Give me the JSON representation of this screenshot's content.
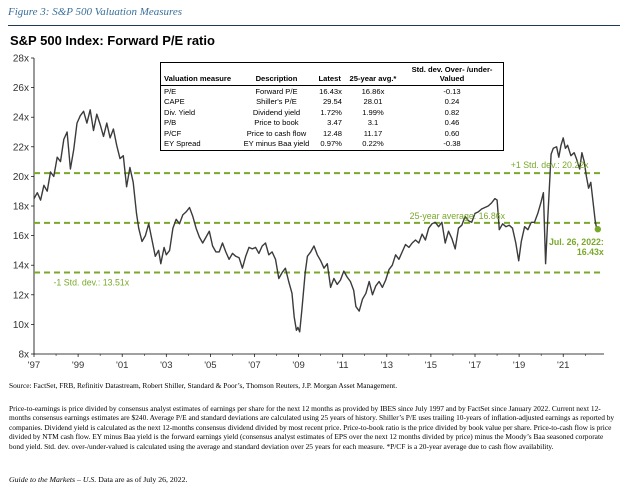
{
  "figure_title": "Figure 3: S&P 500 Valuation Measures",
  "chart_title": "S&P 500 Index: Forward P/E ratio",
  "table": {
    "headers": [
      "Valuation measure",
      "Description",
      "Latest",
      "25-year avg.*",
      "Std. dev. Over- /under-Valued"
    ],
    "rows": [
      [
        "P/E",
        "Forward P/E",
        "16.43x",
        "16.86x",
        "-0.13"
      ],
      [
        "CAPE",
        "Shiller's P/E",
        "29.54",
        "28.01",
        "0.24"
      ],
      [
        "Div. Yield",
        "Dividend yield",
        "1.72%",
        "1.99%",
        "0.82"
      ],
      [
        "P/B",
        "Price to book",
        "3.47",
        "3.1",
        "0.46"
      ],
      [
        "P/CF",
        "Price to cash flow",
        "12.48",
        "11.17",
        "0.60"
      ],
      [
        "EY Spread",
        "EY minus Baa yield",
        "0.97%",
        "0.22%",
        "-0.38"
      ]
    ]
  },
  "chart_data": {
    "type": "line",
    "title": "S&P 500 Index: Forward P/E ratio",
    "xlabel": "",
    "ylabel": "",
    "ylim": [
      8,
      28
    ],
    "y_ticks": [
      "8x",
      "10x",
      "12x",
      "14x",
      "16x",
      "18x",
      "20x",
      "22x",
      "24x",
      "26x",
      "28x"
    ],
    "x_ticks": [
      "'97",
      "'99",
      "'01",
      "'03",
      "'05",
      "'07",
      "'09",
      "'11",
      "'13",
      "'15",
      "'17",
      "'19",
      "'21"
    ],
    "series": [
      {
        "color": "#3b3b3b",
        "points": [
          [
            1997.0,
            18.5
          ],
          [
            1997.15,
            18.9
          ],
          [
            1997.3,
            18.4
          ],
          [
            1997.45,
            19.4
          ],
          [
            1997.6,
            19.0
          ],
          [
            1997.75,
            20.3
          ],
          [
            1997.9,
            20.0
          ],
          [
            1998.05,
            21.3
          ],
          [
            1998.2,
            21.0
          ],
          [
            1998.35,
            22.5
          ],
          [
            1998.5,
            23.0
          ],
          [
            1998.65,
            20.5
          ],
          [
            1998.8,
            21.8
          ],
          [
            1998.95,
            23.6
          ],
          [
            1999.1,
            24.1
          ],
          [
            1999.25,
            24.4
          ],
          [
            1999.4,
            23.6
          ],
          [
            1999.55,
            24.5
          ],
          [
            1999.7,
            23.1
          ],
          [
            1999.85,
            24.2
          ],
          [
            2000.0,
            23.5
          ],
          [
            2000.15,
            22.7
          ],
          [
            2000.3,
            23.6
          ],
          [
            2000.45,
            22.6
          ],
          [
            2000.6,
            23.2
          ],
          [
            2000.75,
            22.1
          ],
          [
            2000.9,
            21.2
          ],
          [
            2001.05,
            21.4
          ],
          [
            2001.2,
            19.3
          ],
          [
            2001.35,
            20.6
          ],
          [
            2001.5,
            19.6
          ],
          [
            2001.65,
            17.5
          ],
          [
            2001.75,
            16.5
          ],
          [
            2001.9,
            15.6
          ],
          [
            2002.05,
            16.0
          ],
          [
            2002.2,
            16.8
          ],
          [
            2002.35,
            15.7
          ],
          [
            2002.5,
            14.6
          ],
          [
            2002.65,
            15.0
          ],
          [
            2002.75,
            14.1
          ],
          [
            2002.9,
            15.2
          ],
          [
            2003.0,
            14.7
          ],
          [
            2003.15,
            15.0
          ],
          [
            2003.3,
            16.5
          ],
          [
            2003.45,
            17.1
          ],
          [
            2003.6,
            16.8
          ],
          [
            2003.75,
            17.4
          ],
          [
            2003.9,
            17.6
          ],
          [
            2004.05,
            17.9
          ],
          [
            2004.2,
            17.3
          ],
          [
            2004.35,
            16.5
          ],
          [
            2004.5,
            15.9
          ],
          [
            2004.65,
            15.5
          ],
          [
            2004.8,
            15.9
          ],
          [
            2004.95,
            16.3
          ],
          [
            2005.1,
            15.3
          ],
          [
            2005.25,
            14.9
          ],
          [
            2005.4,
            14.9
          ],
          [
            2005.55,
            15.5
          ],
          [
            2005.7,
            14.9
          ],
          [
            2005.85,
            14.4
          ],
          [
            2006.0,
            14.8
          ],
          [
            2006.15,
            14.6
          ],
          [
            2006.3,
            14.5
          ],
          [
            2006.45,
            13.8
          ],
          [
            2006.6,
            14.6
          ],
          [
            2006.75,
            15.2
          ],
          [
            2006.9,
            15.1
          ],
          [
            2007.05,
            15.2
          ],
          [
            2007.2,
            14.8
          ],
          [
            2007.35,
            15.3
          ],
          [
            2007.5,
            15.5
          ],
          [
            2007.65,
            14.7
          ],
          [
            2007.8,
            14.9
          ],
          [
            2007.95,
            14.4
          ],
          [
            2008.1,
            13.1
          ],
          [
            2008.25,
            13.5
          ],
          [
            2008.4,
            13.8
          ],
          [
            2008.55,
            12.9
          ],
          [
            2008.7,
            12.1
          ],
          [
            2008.8,
            10.5
          ],
          [
            2008.9,
            9.6
          ],
          [
            2008.97,
            9.8
          ],
          [
            2009.05,
            9.5
          ],
          [
            2009.15,
            11.0
          ],
          [
            2009.3,
            13.5
          ],
          [
            2009.4,
            14.6
          ],
          [
            2009.55,
            14.9
          ],
          [
            2009.7,
            15.3
          ],
          [
            2009.85,
            14.7
          ],
          [
            2010.0,
            14.3
          ],
          [
            2010.15,
            13.8
          ],
          [
            2010.3,
            14.1
          ],
          [
            2010.45,
            12.5
          ],
          [
            2010.6,
            13.1
          ],
          [
            2010.75,
            12.7
          ],
          [
            2010.9,
            13.0
          ],
          [
            2011.05,
            13.6
          ],
          [
            2011.2,
            13.2
          ],
          [
            2011.35,
            12.9
          ],
          [
            2011.5,
            12.3
          ],
          [
            2011.6,
            11.2
          ],
          [
            2011.75,
            10.9
          ],
          [
            2011.9,
            11.7
          ],
          [
            2012.05,
            12.1
          ],
          [
            2012.2,
            12.9
          ],
          [
            2012.35,
            12.0
          ],
          [
            2012.5,
            12.6
          ],
          [
            2012.65,
            12.9
          ],
          [
            2012.8,
            12.5
          ],
          [
            2012.95,
            13.0
          ],
          [
            2013.1,
            13.7
          ],
          [
            2013.25,
            14.0
          ],
          [
            2013.4,
            14.7
          ],
          [
            2013.55,
            14.4
          ],
          [
            2013.7,
            14.9
          ],
          [
            2013.85,
            15.4
          ],
          [
            2014.0,
            15.2
          ],
          [
            2014.15,
            15.5
          ],
          [
            2014.3,
            15.7
          ],
          [
            2014.45,
            15.5
          ],
          [
            2014.6,
            16.1
          ],
          [
            2014.75,
            15.7
          ],
          [
            2014.9,
            16.5
          ],
          [
            2015.05,
            16.8
          ],
          [
            2015.2,
            16.9
          ],
          [
            2015.35,
            16.6
          ],
          [
            2015.5,
            16.9
          ],
          [
            2015.65,
            15.5
          ],
          [
            2015.8,
            16.3
          ],
          [
            2015.95,
            15.8
          ],
          [
            2016.1,
            15.1
          ],
          [
            2016.25,
            16.5
          ],
          [
            2016.4,
            16.7
          ],
          [
            2016.55,
            17.3
          ],
          [
            2016.7,
            17.0
          ],
          [
            2016.85,
            16.9
          ],
          [
            2017.0,
            17.5
          ],
          [
            2017.15,
            17.6
          ],
          [
            2017.3,
            17.8
          ],
          [
            2017.45,
            17.9
          ],
          [
            2017.6,
            18.0
          ],
          [
            2017.75,
            18.2
          ],
          [
            2017.9,
            18.5
          ],
          [
            2018.0,
            18.4
          ],
          [
            2018.1,
            16.4
          ],
          [
            2018.25,
            16.8
          ],
          [
            2018.4,
            16.6
          ],
          [
            2018.55,
            16.7
          ],
          [
            2018.7,
            16.5
          ],
          [
            2018.85,
            15.5
          ],
          [
            2018.98,
            14.3
          ],
          [
            2019.1,
            15.6
          ],
          [
            2019.25,
            16.6
          ],
          [
            2019.4,
            16.4
          ],
          [
            2019.55,
            16.9
          ],
          [
            2019.7,
            16.9
          ],
          [
            2019.85,
            17.5
          ],
          [
            2020.0,
            18.3
          ],
          [
            2020.1,
            18.9
          ],
          [
            2020.2,
            14.1
          ],
          [
            2020.3,
            17.2
          ],
          [
            2020.45,
            21.5
          ],
          [
            2020.55,
            21.9
          ],
          [
            2020.7,
            22.0
          ],
          [
            2020.8,
            21.3
          ],
          [
            2020.9,
            22.1
          ],
          [
            2021.0,
            22.6
          ],
          [
            2021.1,
            21.9
          ],
          [
            2021.2,
            22.1
          ],
          [
            2021.35,
            21.4
          ],
          [
            2021.5,
            21.6
          ],
          [
            2021.6,
            21.2
          ],
          [
            2021.75,
            20.5
          ],
          [
            2021.85,
            21.6
          ],
          [
            2021.95,
            21.0
          ],
          [
            2022.05,
            20.0
          ],
          [
            2022.15,
            19.2
          ],
          [
            2022.25,
            19.6
          ],
          [
            2022.35,
            18.3
          ],
          [
            2022.45,
            17.0
          ],
          [
            2022.5,
            16.6
          ],
          [
            2022.57,
            16.43
          ]
        ]
      }
    ],
    "reference_lines": [
      {
        "value": 20.22,
        "label": "+1 Std. dev.: 20.22x",
        "color": "#7aa82a"
      },
      {
        "value": 16.86,
        "label": "25-year average: 16.86x",
        "color": "#7aa82a"
      },
      {
        "value": 13.51,
        "label": "-1 Std. dev.: 13.51x",
        "color": "#7aa82a"
      }
    ],
    "latest_point": {
      "x": 2022.57,
      "y": 16.43,
      "label_line1": "Jul. 26, 2022:",
      "label_line2": "16.43x",
      "color": "#7aa82a"
    },
    "grid": false,
    "legend": "none"
  },
  "source": "Source: FactSet, FRB, Refinitiv Datastream, Robert Shiller, Standard & Poor’s, Thomson Reuters, J.P. Morgan Asset Management.",
  "notes": "Price-to-earnings is price divided by consensus analyst estimates of earnings per share for the next 12 months as provided by IBES since July 1997 and by FactSet since January 2022. Current next 12-months consensus earnings estimates are $240. Average P/E and standard deviations are calculated using 25 years of history. Shiller’s P/E uses trailing 10-years of inflation-adjusted earnings as reported by companies. Dividend yield is calculated as the next 12-months consensus dividend divided by most recent price. Price-to-book ratio is the price divided by book value per share. Price-to-cash flow is price divided by NTM cash flow. EY minus Baa yield is the forward earnings yield (consensus analyst estimates of EPS over the next 12 months divided by price) minus the Moody’s Baa seasoned corporate bond yield. Std. dev. over-/under-valued is calculated using the average and standard deviation over 25 years for each measure. *P/CF is a 20-year average due to cash flow availability.",
  "footer": {
    "guide": "Guide to the Markets – U.S.",
    "asof": " Data are as of July 26, 2022."
  }
}
